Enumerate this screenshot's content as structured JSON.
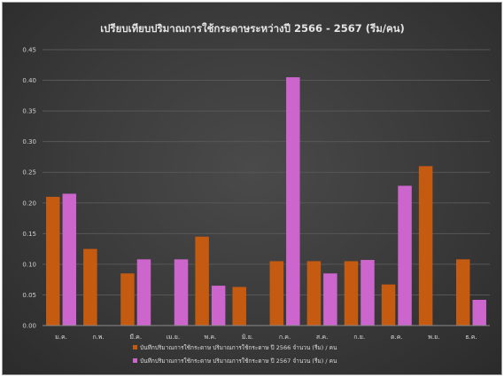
{
  "chart_data": {
    "type": "bar",
    "title": "เปรียบเทียบปริมาณการใช้กระดาษระหว่างปี 2566 - 2567 (รีม/คน)",
    "xlabel": "",
    "ylabel": "",
    "ylim": [
      0,
      0.45
    ],
    "ytick_step": 0.05,
    "grid": true,
    "legend_position": "bottom",
    "categories": [
      "ม.ค.",
      "ก.พ.",
      "มี.ค.",
      "เม.ย.",
      "พ.ค.",
      "มิ.ย.",
      "ก.ค.",
      "ส.ค.",
      "ก.ย.",
      "ต.ค.",
      "พ.ย.",
      "ธ.ค."
    ],
    "series": [
      {
        "name": "บันทึกปริมาณการใช้กระดาษ ปริมาณการใช้กระดาษ ปี 2566 จำนวน (รีม) / คน",
        "color": "#c55a11",
        "values": [
          0.21,
          0.125,
          0.085,
          null,
          0.145,
          0.063,
          0.105,
          0.105,
          0.105,
          0.067,
          0.26,
          0.108
        ]
      },
      {
        "name": "บันทึกปริมาณการใช้กระดาษ ปริมาณการใช้กระดาษ ปี 2567 จำนวน (รีม) / คน",
        "color": "#cc66cc",
        "values": [
          0.215,
          null,
          0.108,
          0.108,
          0.065,
          null,
          0.405,
          0.085,
          0.107,
          0.228,
          null,
          0.042
        ]
      }
    ]
  }
}
